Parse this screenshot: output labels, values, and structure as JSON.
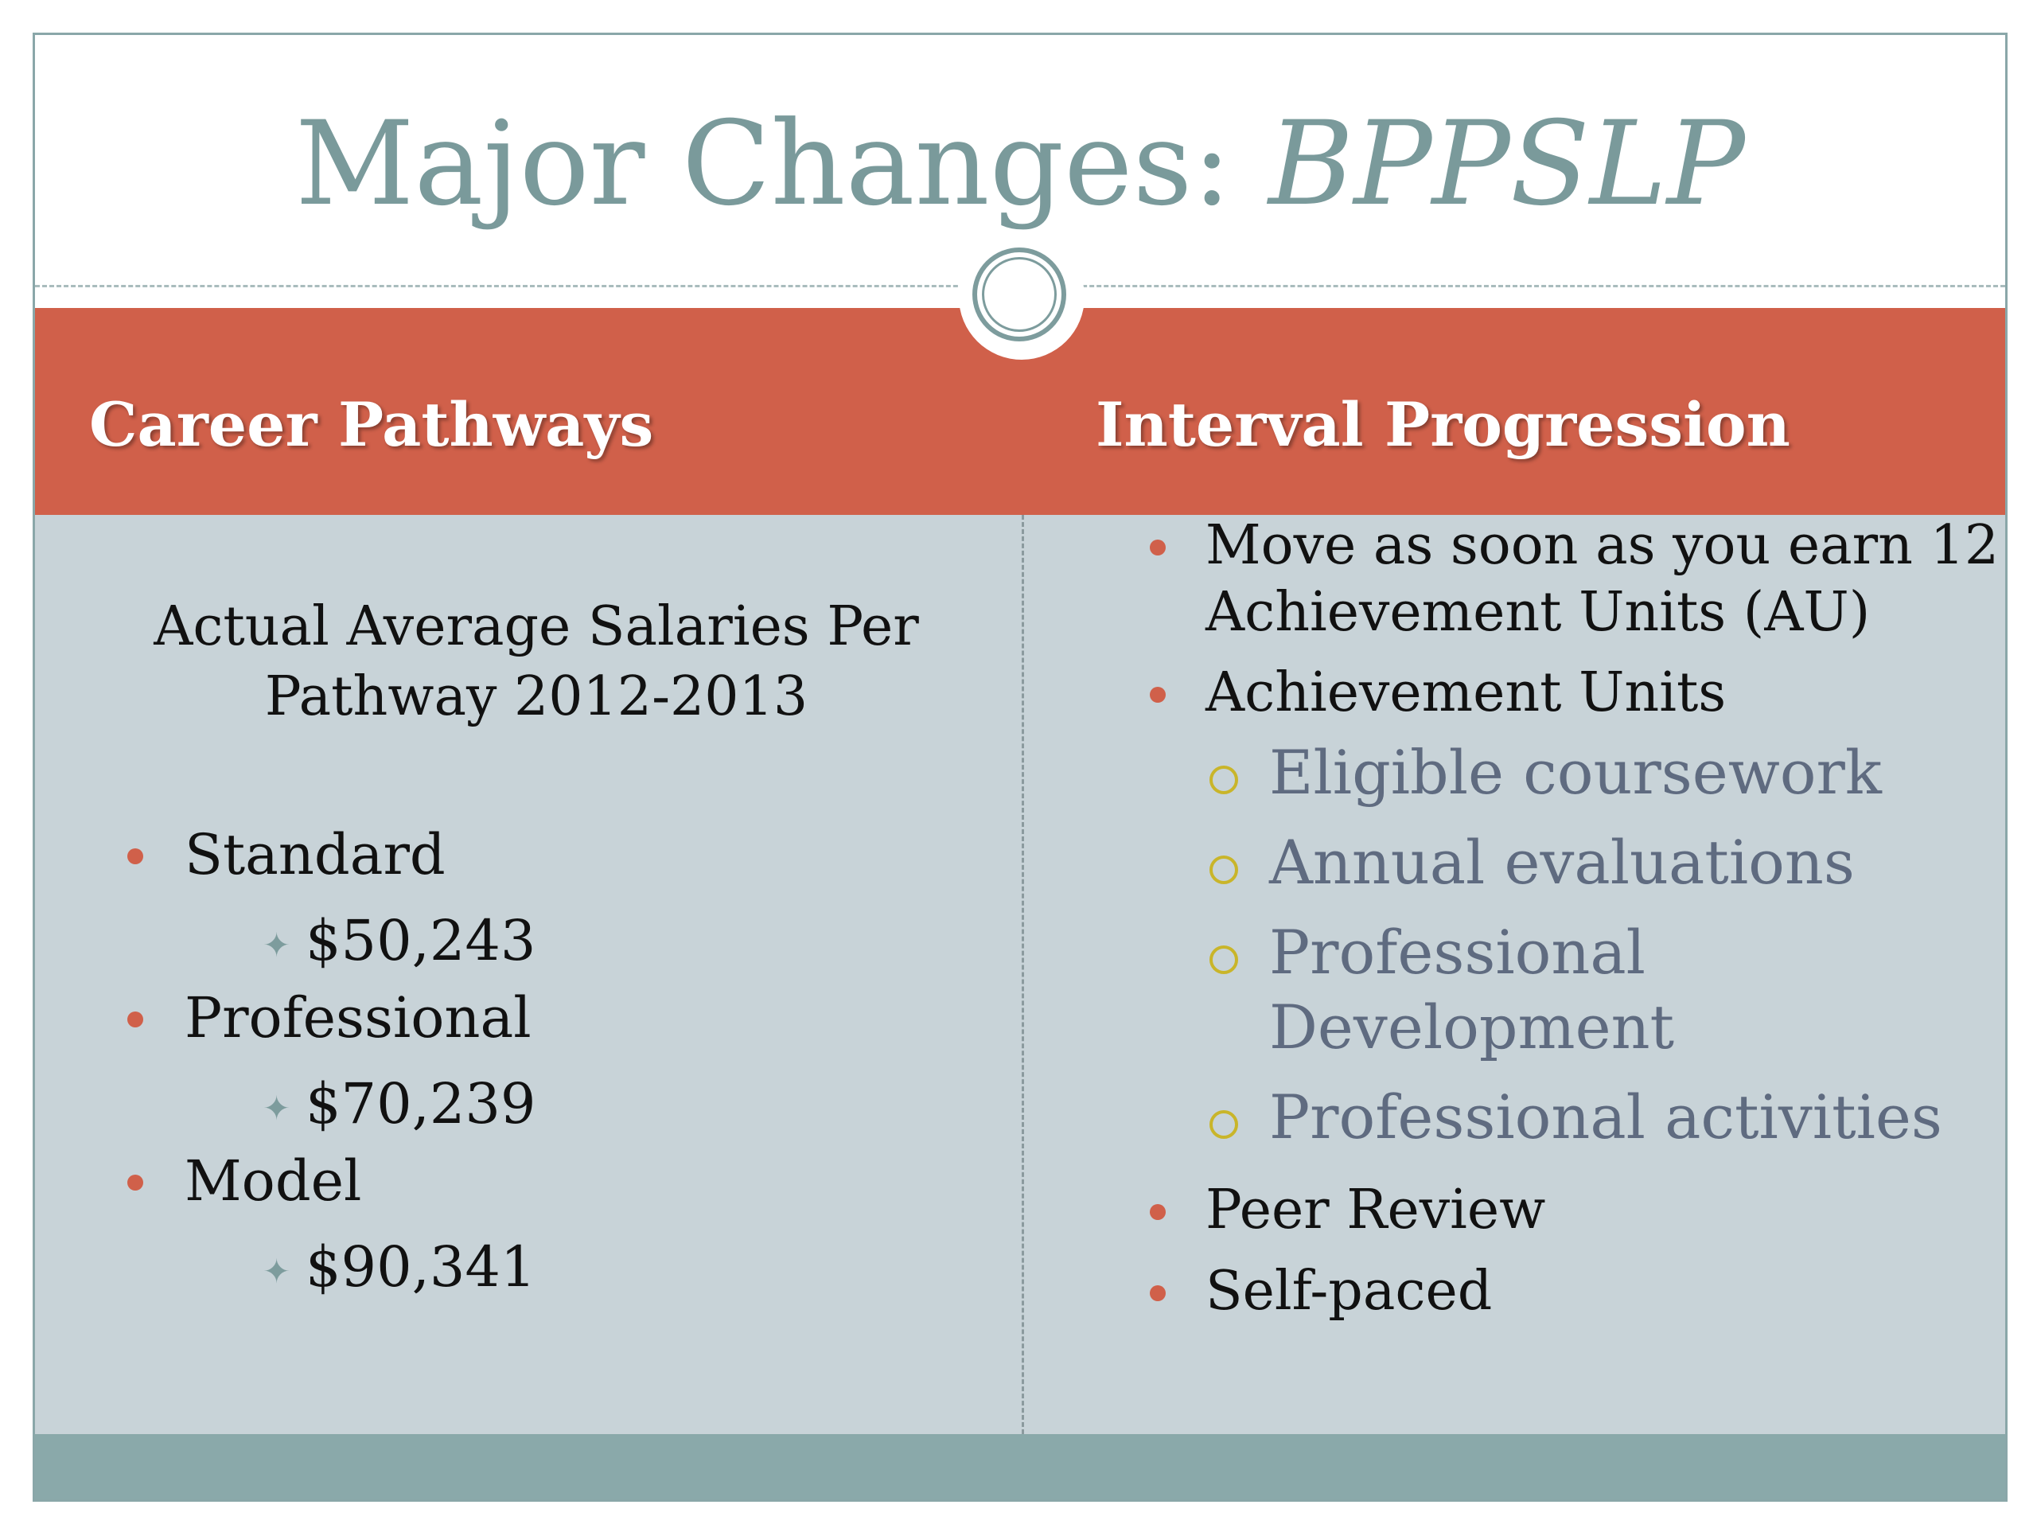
{
  "title": {
    "main": "Major Changes: ",
    "emphasis": "BPPSLP"
  },
  "left_column": {
    "heading": "Career Pathways",
    "subtitle_line1": "Actual Average Salaries Per",
    "subtitle_line2": "Pathway 2012-2013",
    "pathways": [
      {
        "label": "Standard",
        "salary": "$50,243"
      },
      {
        "label": "Professional",
        "salary": "$70,239"
      },
      {
        "label": "Model",
        "salary": "$90,341"
      }
    ]
  },
  "right_column": {
    "heading": "Interval Progression",
    "bullet1_line1": "Move as soon as you earn 12",
    "bullet1_line2": "Achievement Units (AU)",
    "bullet2": "Achievement Units",
    "sub_items": {
      "a": "Eligible coursework",
      "b": "Annual evaluations",
      "c_line1": "Professional",
      "c_line2": "Development",
      "d": "Professional activities"
    },
    "bullet3": "Peer Review",
    "bullet4": "Self-paced"
  },
  "colors": {
    "accent": "#d0604a",
    "title": "#7a9a9b",
    "content_bg": "#c8d3d8",
    "footer": "#8aa9aa",
    "sub_bullet": "#c9b52a"
  }
}
